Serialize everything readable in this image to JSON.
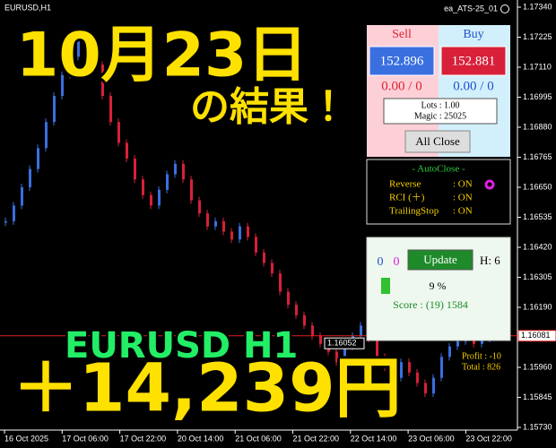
{
  "header": {
    "symbol": "EURUSD,H1",
    "ea_name": "ea_ATS-25_01"
  },
  "overlay": {
    "date": "10月23日",
    "result": "の結果！",
    "pair": "EURUSD H1",
    "profit": "＋14,239円"
  },
  "price_chart": {
    "ylim": [
      1.1573,
      1.1734
    ],
    "yticks": [
      {
        "value": 1.1734,
        "label": "1.17340"
      },
      {
        "value": 1.17225,
        "label": "1.17225"
      },
      {
        "value": 1.1711,
        "label": "1.17110"
      },
      {
        "value": 1.16995,
        "label": "1.16995"
      },
      {
        "value": 1.1688,
        "label": "1.16880"
      },
      {
        "value": 1.16765,
        "label": "1.16765"
      },
      {
        "value": 1.1665,
        "label": "1.16650"
      },
      {
        "value": 1.16535,
        "label": "1.16535"
      },
      {
        "value": 1.1642,
        "label": "1.16420"
      },
      {
        "value": 1.16305,
        "label": "1.16305"
      },
      {
        "value": 1.1619,
        "label": "1.16190"
      },
      {
        "value": 1.1596,
        "label": "1.15960"
      },
      {
        "value": 1.15845,
        "label": "1.15845"
      },
      {
        "value": 1.1573,
        "label": "1.15730"
      }
    ],
    "current_price": {
      "value": 1.16081,
      "label": "1.16081"
    },
    "line_price": {
      "value": 1.16052,
      "label": "1.16052"
    },
    "x_labels": [
      "16 Oct 2025",
      "17 Oct 06:00",
      "17 Oct 22:00",
      "20 Oct 14:00",
      "21 Oct 06:00",
      "21 Oct 22:00",
      "22 Oct 14:00",
      "23 Oct 06:00",
      "23 Oct 22:00"
    ],
    "closes": [
      1.1652,
      1.1658,
      1.1665,
      1.1672,
      1.168,
      1.169,
      1.17,
      1.1708,
      1.1715,
      1.1722,
      1.1718,
      1.1712,
      1.17,
      1.169,
      1.1682,
      1.1676,
      1.1668,
      1.1662,
      1.1658,
      1.1664,
      1.167,
      1.1674,
      1.1668,
      1.166,
      1.1655,
      1.165,
      1.1652,
      1.1648,
      1.1645,
      1.165,
      1.1646,
      1.164,
      1.1636,
      1.1632,
      1.1625,
      1.162,
      1.1616,
      1.1612,
      1.1608,
      1.1605,
      1.1602,
      1.1598,
      1.1604,
      1.1608,
      1.1612,
      1.1607,
      1.16,
      1.1596,
      1.1592,
      1.1598,
      1.1594,
      1.159,
      1.1586,
      1.1592,
      1.16,
      1.1604,
      1.1606,
      1.1608,
      1.1605,
      1.1607,
      1.1608,
      1.1608
    ],
    "up_color": "#3a6fe0",
    "down_color": "#d8203a"
  },
  "trade_panel": {
    "sell_label": "Sell",
    "buy_label": "Buy",
    "sell_price": "152.896",
    "buy_price": "152.881",
    "sell_pos": "0.00 / 0",
    "buy_pos": "0.00 / 0",
    "lots": "Lots : 1.00",
    "magic": "Magic : 25025",
    "close_all": "All Close"
  },
  "autoclose_panel": {
    "title": "- AutoClose -",
    "rows": [
      [
        "Reverse",
        ": ON"
      ],
      [
        "RCI (＋)",
        ": ON"
      ],
      [
        "TrailingStop",
        ": ON"
      ]
    ]
  },
  "status_panel": {
    "count_a": "0",
    "count_b": "0",
    "update": "Update",
    "h": "H: 6",
    "percent": "9 %",
    "score": "Score : (19) 1584"
  },
  "profit_info": {
    "profit": "Profit : -10",
    "total": "Total : 826"
  }
}
